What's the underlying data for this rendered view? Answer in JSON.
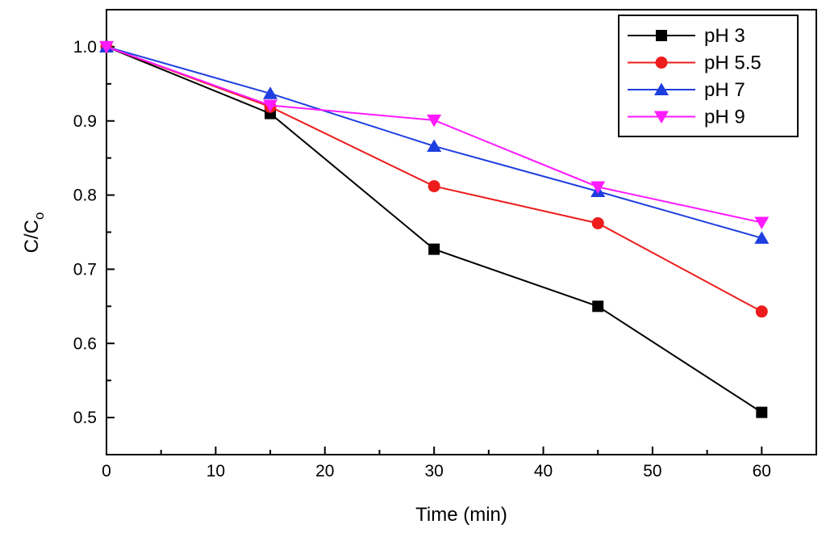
{
  "chart_data": {
    "type": "line",
    "title": "",
    "xlabel": "Time (min)",
    "ylabel": {
      "main": "C/C",
      "sub": "o"
    },
    "xlim": [
      0,
      65
    ],
    "ylim": [
      0.45,
      1.05
    ],
    "xticks": [
      0,
      10,
      20,
      30,
      40,
      50,
      60
    ],
    "yticks": [
      0.5,
      0.6,
      0.7,
      0.8,
      0.9,
      1.0
    ],
    "xtick_labels": [
      "0",
      "10",
      "20",
      "30",
      "40",
      "50",
      "60"
    ],
    "ytick_labels": [
      "0.5",
      "0.6",
      "0.7",
      "0.8",
      "0.9",
      "1.0"
    ],
    "grid": false,
    "legend_position": "top-right",
    "x": [
      0,
      15,
      30,
      45,
      60
    ],
    "series": [
      {
        "name": "pH 3",
        "color": "#000000",
        "marker": "square",
        "values": [
          1.0,
          0.91,
          0.727,
          0.65,
          0.507
        ]
      },
      {
        "name": "pH 5.5",
        "color": "#ee1c1c",
        "marker": "circle",
        "values": [
          1.0,
          0.919,
          0.812,
          0.762,
          0.643
        ]
      },
      {
        "name": "pH 7",
        "color": "#1f3ee0",
        "marker": "triangle-up",
        "values": [
          1.0,
          0.937,
          0.866,
          0.805,
          0.742
        ]
      },
      {
        "name": "pH 9",
        "color": "#ff1aff",
        "marker": "triangle-down",
        "values": [
          1.0,
          0.921,
          0.901,
          0.811,
          0.763
        ]
      }
    ]
  }
}
